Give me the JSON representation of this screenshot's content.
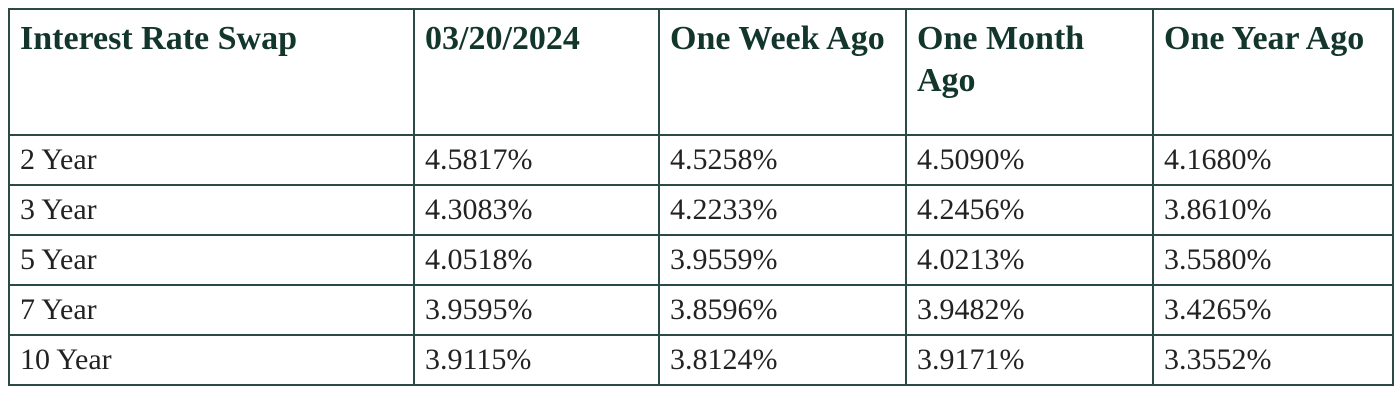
{
  "table": {
    "header": [
      "Interest Rate Swap",
      "03/20/2024",
      "One Week Ago",
      "One Month Ago",
      "One Year Ago"
    ],
    "rows": [
      [
        "2 Year",
        "4.5817%",
        "4.5258%",
        "4.5090%",
        "4.1680%"
      ],
      [
        "3 Year",
        "4.3083%",
        "4.2233%",
        "4.2456%",
        "3.8610%"
      ],
      [
        "5 Year",
        "4.0518%",
        "3.9559%",
        "4.0213%",
        "3.5580%"
      ],
      [
        "7 Year",
        "3.9595%",
        "3.8596%",
        "3.9482%",
        "3.4265%"
      ],
      [
        "10 Year",
        "3.9115%",
        "3.8124%",
        "3.9171%",
        "3.3552%"
      ]
    ]
  }
}
